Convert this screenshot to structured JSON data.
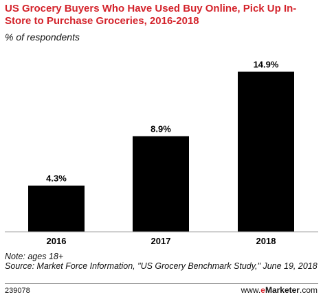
{
  "chart_data": {
    "type": "bar",
    "title": "US Grocery Buyers Who Have Used Buy Online, Pick Up In-Store to Purchase Groceries, 2016-2018",
    "subtitle": "% of respondents",
    "categories": [
      "2016",
      "2017",
      "2018"
    ],
    "values": [
      4.3,
      8.9,
      14.9
    ],
    "value_labels": [
      "4.3%",
      "8.9%",
      "14.9%"
    ],
    "ylim": [
      0,
      16
    ],
    "grid": false,
    "bar_color": "#000000"
  },
  "notes": {
    "note": "Note: ages 18+",
    "source": "Source: Market Force Information, \"US Grocery Benchmark Study,\" June 19, 2018"
  },
  "footer": {
    "id": "239078",
    "brand_prefix": "www.",
    "brand_e": "e",
    "brand_name": "Marketer",
    "brand_suffix": ".com"
  },
  "colors": {
    "title": "#d4232b",
    "brand_accent": "#d4232b"
  }
}
